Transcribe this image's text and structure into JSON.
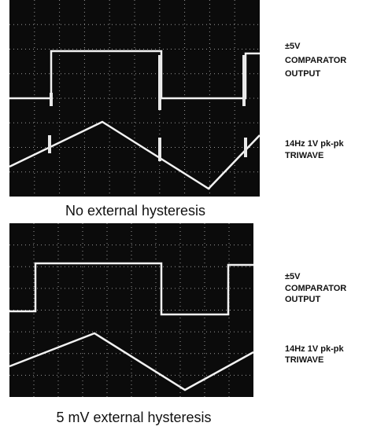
{
  "panels": [
    {
      "output_label": [
        "±5V",
        "COMPARATOR",
        "OUTPUT"
      ],
      "triwave_label": [
        "14Hz 1V pk-pk",
        "TRIWAVE"
      ],
      "caption": "No external hysteresis"
    },
    {
      "output_label": [
        "±5V",
        "COMPARATOR",
        "OUTPUT"
      ],
      "triwave_label": [
        "14Hz 1V pk-pk",
        "TRIWAVE"
      ],
      "caption": "5 mV external hysteresis"
    }
  ]
}
